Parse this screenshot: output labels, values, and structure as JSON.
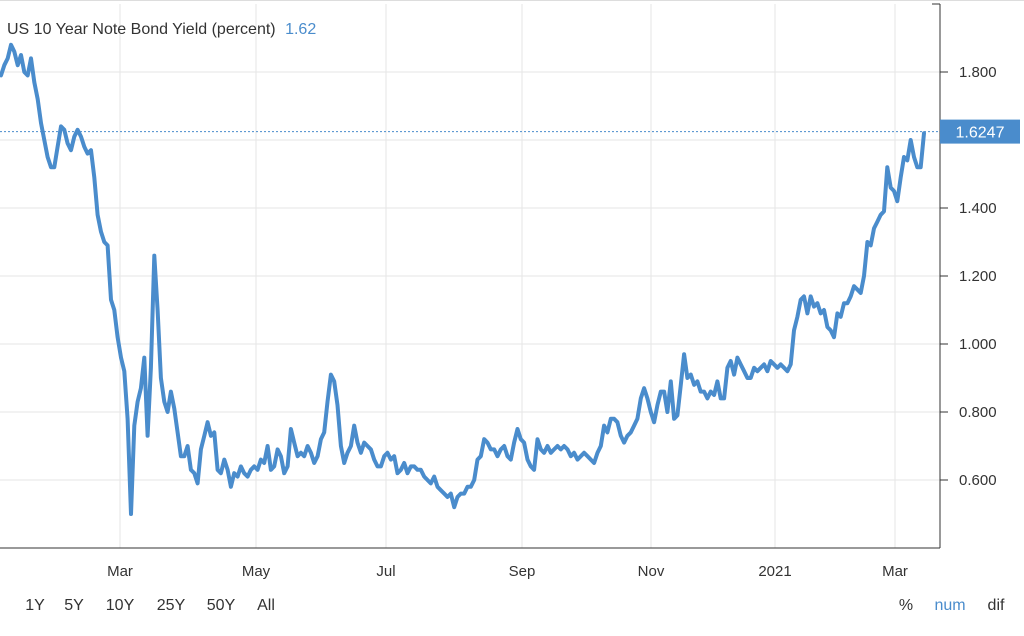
{
  "title": {
    "label": "US 10 Year Note Bond Yield (percent)",
    "last_value": "1.62"
  },
  "colors": {
    "series": "#4a8ccc",
    "last_value_text": "#4a8ccc",
    "label_bg": "#4a8ccc",
    "grid": "#e6e6e6",
    "axis_text": "#333333",
    "active_mode": "#4a8ccc"
  },
  "price_label": "1.6247",
  "range_buttons": [
    "1Y",
    "5Y",
    "10Y",
    "25Y",
    "50Y",
    "All"
  ],
  "mode_buttons": [
    {
      "label": "%",
      "active": false
    },
    {
      "label": "num",
      "active": true
    },
    {
      "label": "dif",
      "active": false
    }
  ],
  "chart_data": {
    "type": "line",
    "title": "US 10 Year Note Bond Yield (percent)",
    "xlabel": "",
    "ylabel": "",
    "x_tick_labels": [
      "Mar",
      "May",
      "Jul",
      "Sep",
      "Nov",
      "2021",
      "Mar"
    ],
    "y_tick_labels": [
      "0.600",
      "0.800",
      "1.000",
      "1.200",
      "1.400",
      "1.800"
    ],
    "ylim": [
      0.4,
      2.0
    ],
    "grid": true,
    "legend": "none",
    "last_value": 1.6247,
    "series": [
      {
        "values": [
          1.79,
          1.82,
          1.84,
          1.88,
          1.86,
          1.82,
          1.85,
          1.8,
          1.79,
          1.84,
          1.77,
          1.72,
          1.65,
          1.6,
          1.55,
          1.52,
          1.52,
          1.58,
          1.64,
          1.63,
          1.59,
          1.57,
          1.61,
          1.63,
          1.61,
          1.58,
          1.56,
          1.57,
          1.49,
          1.38,
          1.33,
          1.3,
          1.29,
          1.13,
          1.1,
          1.02,
          0.96,
          0.92,
          0.78,
          0.5,
          0.76,
          0.83,
          0.87,
          0.96,
          0.73,
          0.93,
          1.26,
          1.1,
          0.9,
          0.83,
          0.8,
          0.86,
          0.81,
          0.74,
          0.67,
          0.67,
          0.7,
          0.63,
          0.62,
          0.59,
          0.69,
          0.73,
          0.77,
          0.73,
          0.74,
          0.63,
          0.62,
          0.66,
          0.63,
          0.58,
          0.62,
          0.61,
          0.64,
          0.62,
          0.61,
          0.63,
          0.64,
          0.63,
          0.66,
          0.65,
          0.7,
          0.63,
          0.64,
          0.69,
          0.67,
          0.62,
          0.64,
          0.75,
          0.71,
          0.67,
          0.68,
          0.67,
          0.7,
          0.68,
          0.65,
          0.67,
          0.72,
          0.74,
          0.83,
          0.91,
          0.89,
          0.82,
          0.7,
          0.65,
          0.68,
          0.7,
          0.76,
          0.71,
          0.68,
          0.71,
          0.7,
          0.69,
          0.66,
          0.64,
          0.64,
          0.67,
          0.68,
          0.66,
          0.67,
          0.62,
          0.63,
          0.65,
          0.62,
          0.64,
          0.64,
          0.63,
          0.63,
          0.61,
          0.6,
          0.59,
          0.61,
          0.58,
          0.57,
          0.56,
          0.55,
          0.56,
          0.52,
          0.55,
          0.56,
          0.56,
          0.58,
          0.58,
          0.6,
          0.66,
          0.67,
          0.72,
          0.71,
          0.69,
          0.69,
          0.67,
          0.69,
          0.7,
          0.67,
          0.66,
          0.71,
          0.75,
          0.72,
          0.71,
          0.66,
          0.64,
          0.63,
          0.72,
          0.69,
          0.68,
          0.7,
          0.68,
          0.69,
          0.7,
          0.69,
          0.7,
          0.69,
          0.67,
          0.68,
          0.66,
          0.67,
          0.68,
          0.67,
          0.66,
          0.65,
          0.68,
          0.7,
          0.76,
          0.74,
          0.78,
          0.78,
          0.77,
          0.73,
          0.71,
          0.73,
          0.74,
          0.76,
          0.78,
          0.84,
          0.87,
          0.84,
          0.8,
          0.77,
          0.82,
          0.86,
          0.86,
          0.8,
          0.89,
          0.78,
          0.79,
          0.88,
          0.97,
          0.9,
          0.91,
          0.88,
          0.89,
          0.86,
          0.86,
          0.84,
          0.86,
          0.85,
          0.89,
          0.84,
          0.84,
          0.93,
          0.95,
          0.91,
          0.96,
          0.94,
          0.92,
          0.9,
          0.9,
          0.93,
          0.92,
          0.93,
          0.94,
          0.92,
          0.95,
          0.94,
          0.93,
          0.94,
          0.93,
          0.92,
          0.94,
          1.04,
          1.08,
          1.13,
          1.14,
          1.09,
          1.14,
          1.11,
          1.12,
          1.09,
          1.1,
          1.05,
          1.04,
          1.02,
          1.09,
          1.08,
          1.12,
          1.12,
          1.14,
          1.17,
          1.16,
          1.15,
          1.2,
          1.3,
          1.29,
          1.34,
          1.36,
          1.38,
          1.39,
          1.52,
          1.46,
          1.45,
          1.42,
          1.49,
          1.55,
          1.54,
          1.6,
          1.55,
          1.52,
          1.52,
          1.62
        ]
      }
    ]
  }
}
